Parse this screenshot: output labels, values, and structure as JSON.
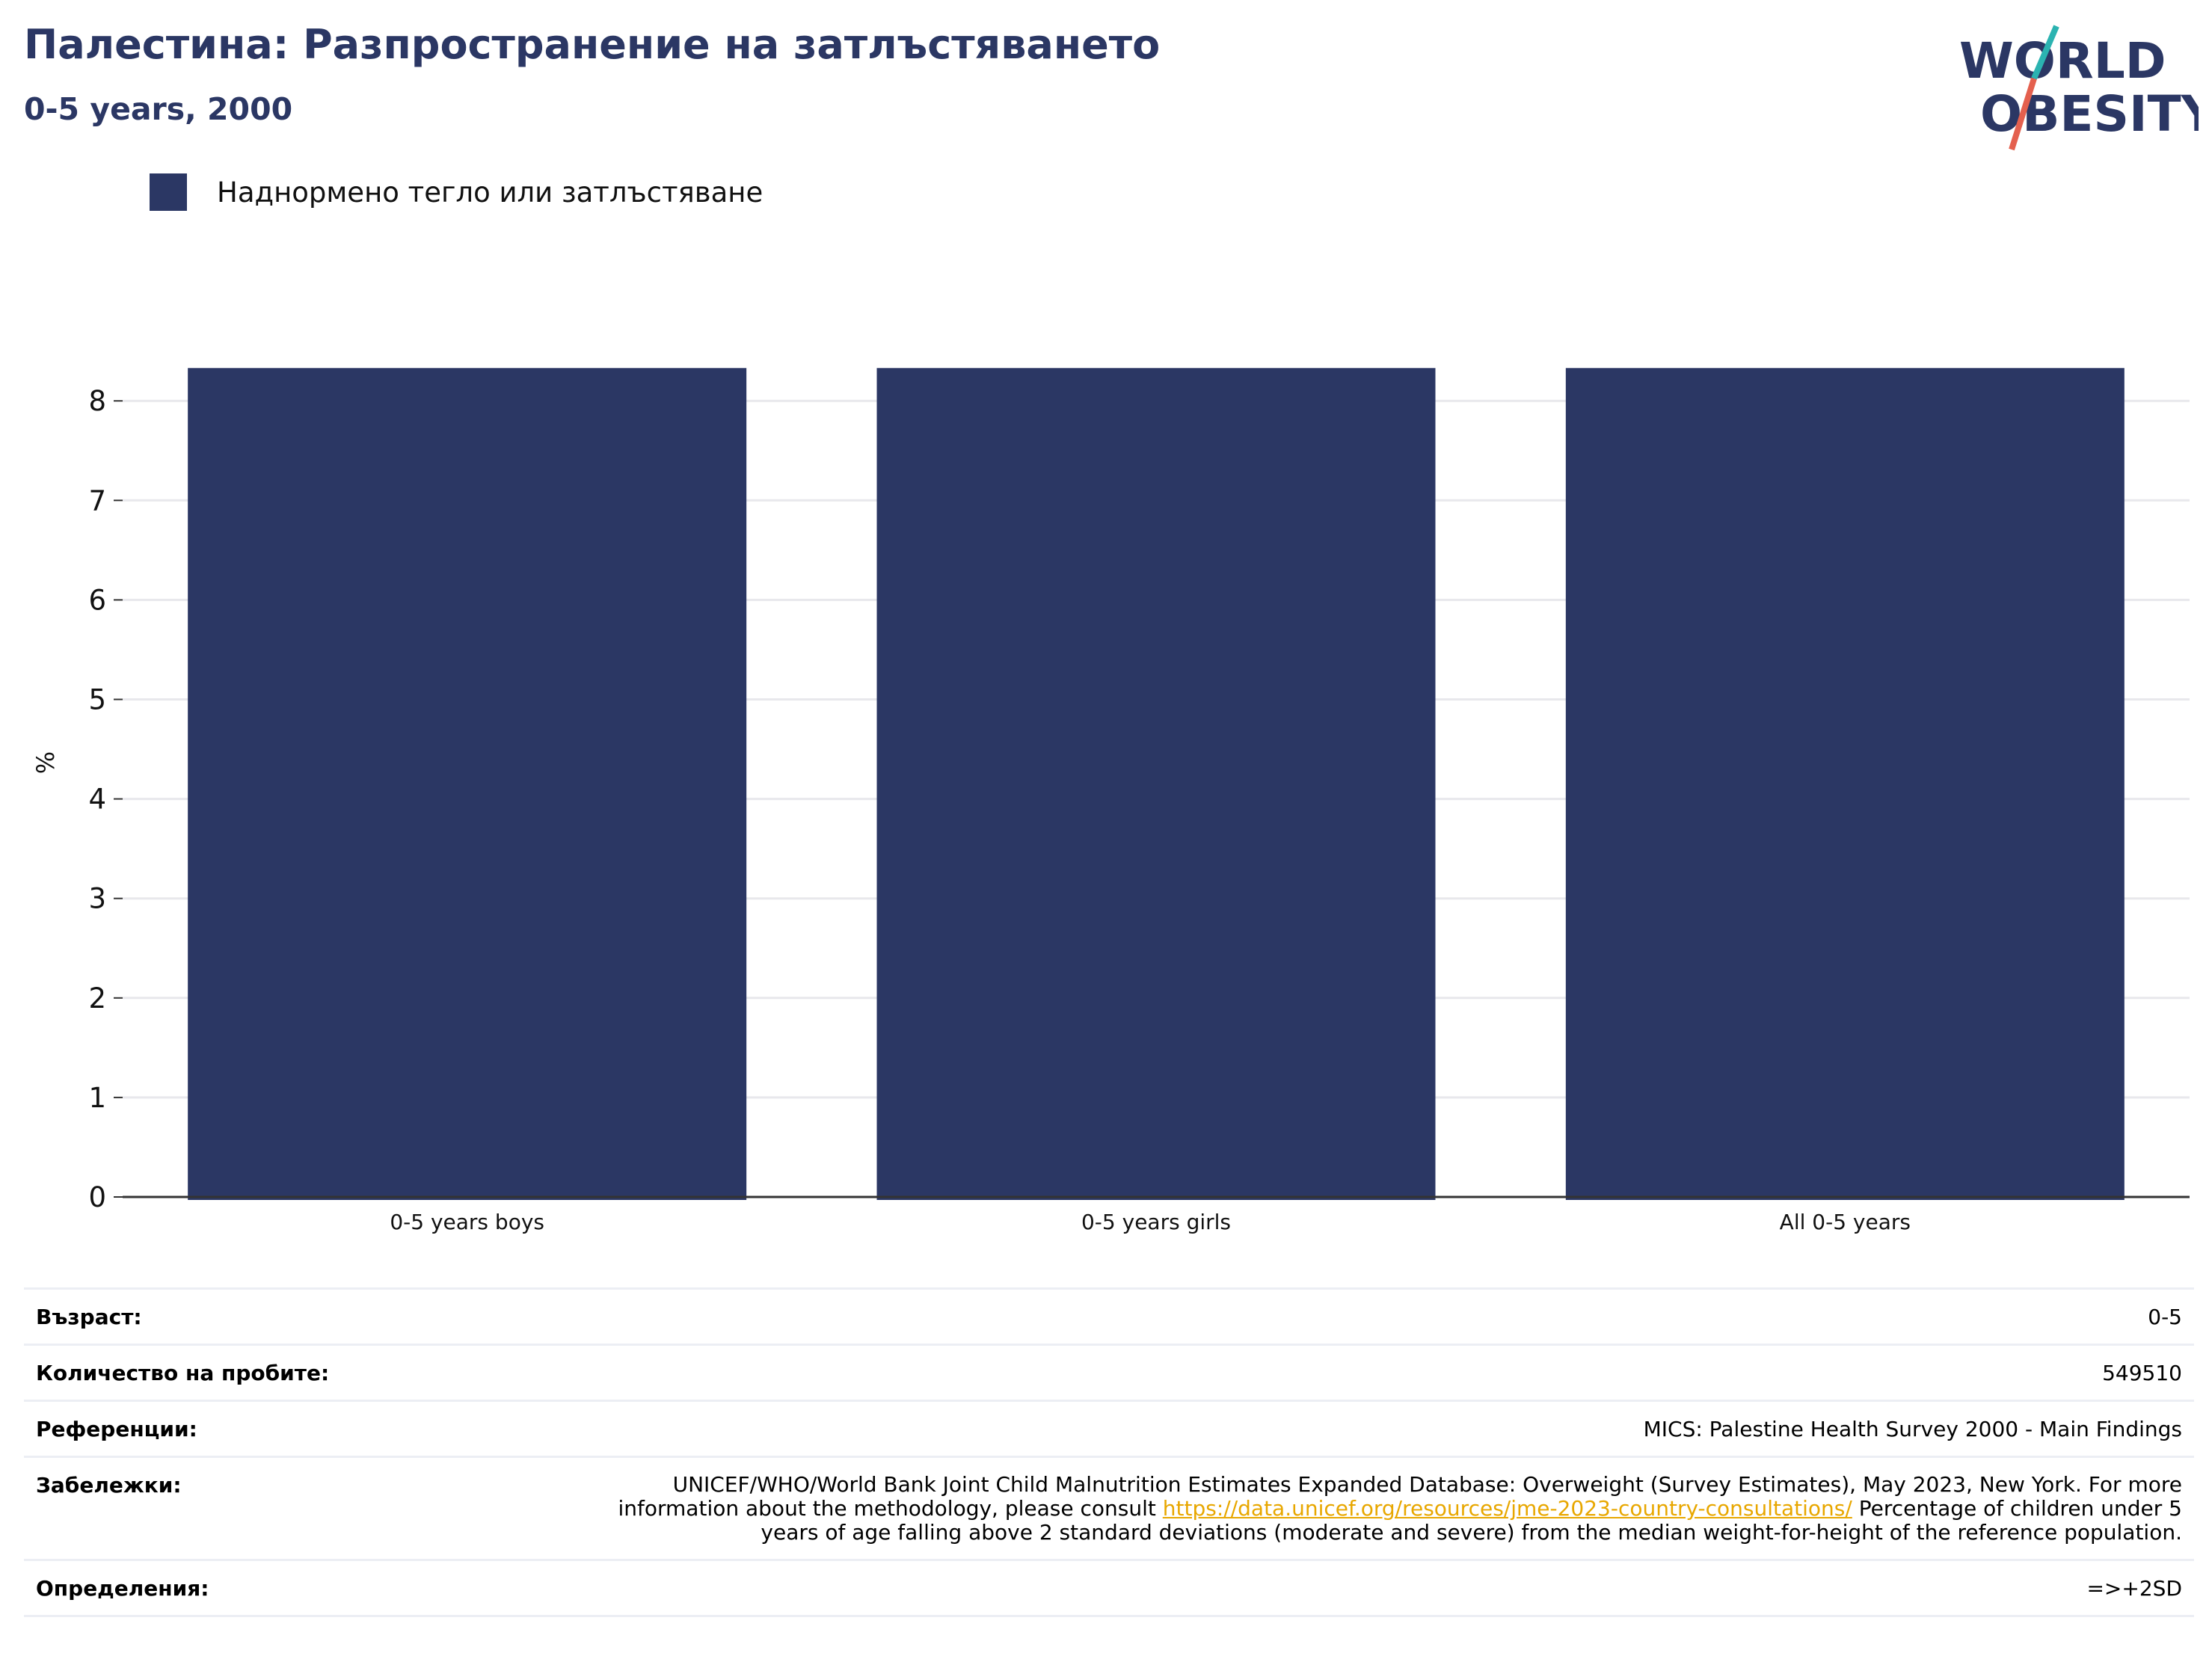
{
  "header": {
    "title": "Палестина: Разпространение на затлъстяването",
    "subtitle": "0-5 years, 2000"
  },
  "logo": {
    "line1": "WORLD",
    "line2": "OBESITY",
    "accent_teal": "#2bb3b1",
    "accent_red": "#e4604e"
  },
  "legend": {
    "label": "Наднормено тегло или затлъстяване",
    "color": "#2b3764"
  },
  "chart_data": {
    "type": "bar",
    "categories": [
      "0-5 years boys",
      "0-5 years girls",
      "All 0-5 years"
    ],
    "series": [
      {
        "name": "Наднормено тегло или затлъстяване",
        "values": [
          8.33,
          8.33,
          8.33
        ],
        "color": "#2b3764"
      }
    ],
    "ylabel": "%",
    "ylim": [
      0,
      8.5
    ],
    "yticks": [
      0,
      1,
      2,
      3,
      4,
      5,
      6,
      7,
      8
    ],
    "grid": true,
    "legend_position": "top-left"
  },
  "info": {
    "age": {
      "label": "Възраст:",
      "value": "0-5"
    },
    "sample": {
      "label": "Количество на пробите:",
      "value": "549510"
    },
    "references": {
      "label": "Референции:",
      "value": "MICS: Palestine Health Survey 2000 - Main Findings"
    },
    "notes": {
      "label": "Забележки:",
      "text_before": "UNICEF/WHO/World Bank Joint Child Malnutrition Estimates Expanded Database: Overweight (Survey Estimates), May 2023, New York. For more information about the methodology, please consult",
      "link": "https://data.unicef.org/resources/jme-2023-country-consultations/",
      "text_after": "Percentage of children under 5 years of age falling above 2 standard deviations (moderate and severe) from the median weight-for-height of the reference population."
    },
    "definitions": {
      "label": "Определения:",
      "value": "=>+2SD"
    }
  }
}
